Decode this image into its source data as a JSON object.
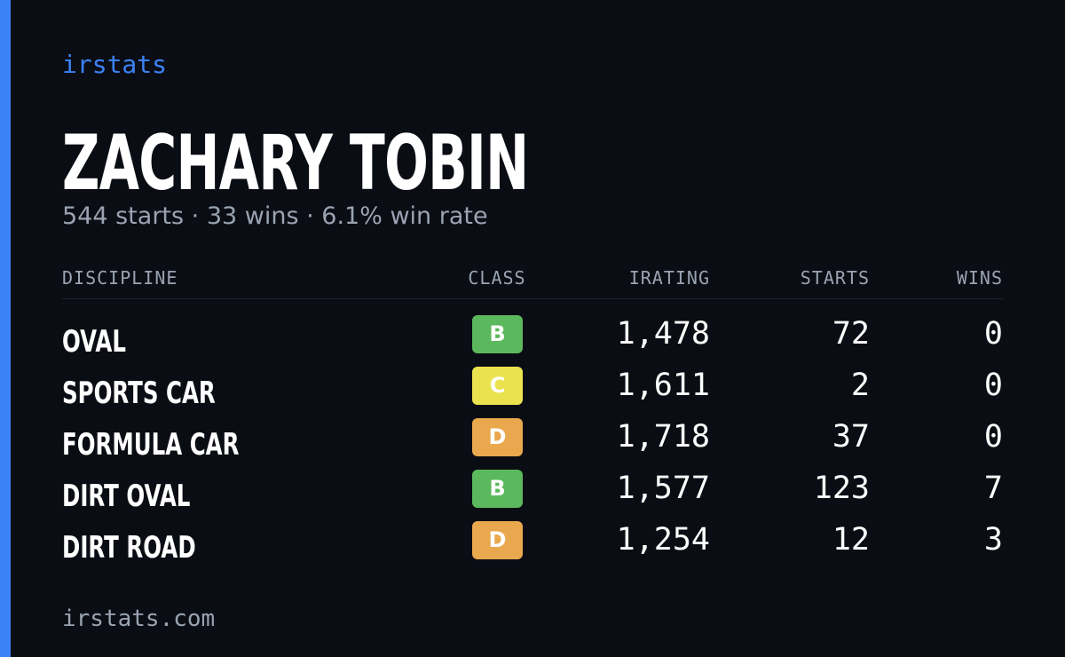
{
  "brand": "irstats",
  "driver": {
    "name": "ZACHARY TOBIN",
    "summary": "544 starts · 33 wins · 6.1% win rate"
  },
  "table": {
    "headers": [
      "DISCIPLINE",
      "CLASS",
      "IRATING",
      "STARTS",
      "WINS"
    ],
    "rows": [
      {
        "discipline": "OVAL",
        "class": "B",
        "class_color": "#5cb85c",
        "irating": "1,478",
        "starts": "72",
        "wins": "0"
      },
      {
        "discipline": "SPORTS CAR",
        "class": "C",
        "class_color": "#ebe24f",
        "irating": "1,611",
        "starts": "2",
        "wins": "0"
      },
      {
        "discipline": "FORMULA CAR",
        "class": "D",
        "class_color": "#e9a84e",
        "irating": "1,718",
        "starts": "37",
        "wins": "0"
      },
      {
        "discipline": "DIRT OVAL",
        "class": "B",
        "class_color": "#5cb85c",
        "irating": "1,577",
        "starts": "123",
        "wins": "7"
      },
      {
        "discipline": "DIRT ROAD",
        "class": "D",
        "class_color": "#e9a84e",
        "irating": "1,254",
        "starts": "12",
        "wins": "3"
      }
    ]
  },
  "footer": "irstats.com"
}
